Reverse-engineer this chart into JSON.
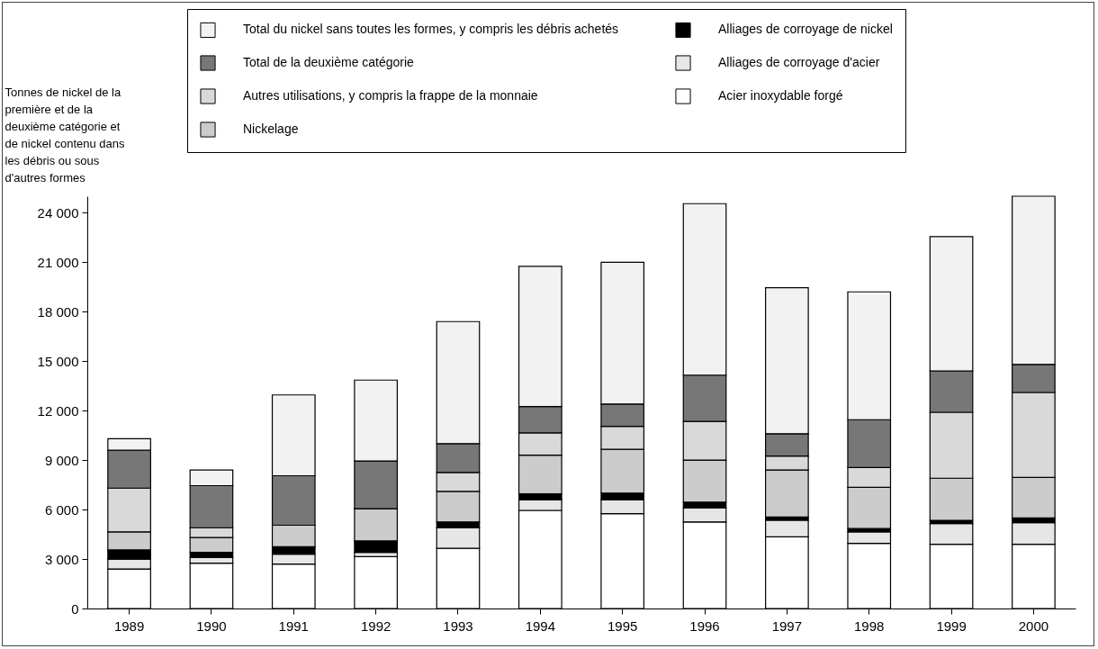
{
  "chart_data": {
    "type": "bar",
    "stacked": true,
    "ylabel": "Tonnes de nickel de la première et de la deuxième catégorie et de nickel contenu dans les débris ou sous d'autres formes",
    "categories": [
      "1989",
      "1990",
      "1991",
      "1992",
      "1993",
      "1994",
      "1995",
      "1996",
      "1997",
      "1998",
      "1999",
      "2000"
    ],
    "series": [
      {
        "name": "Acier inoxydable forgé",
        "color": "#ffffff",
        "values": [
          2400,
          2750,
          2700,
          3150,
          3650,
          5950,
          5750,
          5250,
          4350,
          3950,
          3900,
          3900
        ]
      },
      {
        "name": "Alliages de corroyage d'acier",
        "color": "#e6e6e6",
        "values": [
          600,
          350,
          600,
          250,
          1250,
          650,
          850,
          850,
          1000,
          700,
          1250,
          1300
        ]
      },
      {
        "name": "Alliages de corroyage de nickel",
        "color": "#000000",
        "values": [
          550,
          300,
          450,
          700,
          350,
          350,
          400,
          350,
          200,
          200,
          200,
          300
        ]
      },
      {
        "name": "Nickelage",
        "color": "#cccccc",
        "values": [
          1100,
          900,
          1300,
          1950,
          1850,
          2350,
          2650,
          2550,
          2850,
          2500,
          2550,
          2450
        ]
      },
      {
        "name": "Autres utilisations, y compris la frappe de la monnaie",
        "color": "#d9d9d9",
        "values": [
          2650,
          600,
          0,
          0,
          1150,
          1350,
          1400,
          2350,
          850,
          1200,
          4000,
          5150
        ]
      },
      {
        "name": "Total de la deuxième catégorie",
        "color": "#777777",
        "values": [
          2300,
          2550,
          3000,
          2900,
          1750,
          1600,
          1350,
          2800,
          1350,
          2900,
          2500,
          1700
        ]
      },
      {
        "name": "Total du nickel sans toutes les formes, y compris les débris achetés",
        "color": "#f2f2f2",
        "values": [
          700,
          950,
          4900,
          4900,
          7400,
          8500,
          8600,
          10400,
          8850,
          7750,
          8150,
          10200
        ]
      }
    ],
    "ylim": [
      0,
      25000
    ],
    "yticks": [
      0,
      {
        "value": 3000,
        "label": "3 000"
      },
      {
        "value": 6000,
        "label": "6 000"
      },
      {
        "value": 9000,
        "label": "9 000"
      },
      {
        "value": 12000,
        "label": "12 000"
      },
      {
        "value": 15000,
        "label": "15 000"
      },
      {
        "value": 18000,
        "label": "18 000"
      },
      {
        "value": 21000,
        "label": "21 000"
      },
      {
        "value": 24000,
        "label": "24 000"
      }
    ],
    "grid": false,
    "legend": "top"
  }
}
